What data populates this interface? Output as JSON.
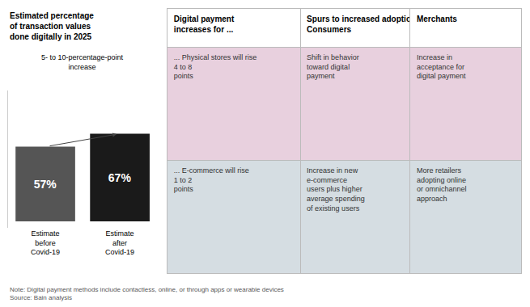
{
  "chart_data": [
    {
      "type": "bar",
      "title": "Estimated percentage\nof transaction values\ndone digitally in 2025",
      "subtitle": "5- to 10-percentage-point\nincrease",
      "categories": [
        "Estimate\nbefore\nCovid-19",
        "Estimate\nafter\nCovid-19"
      ],
      "values": [
        57,
        67
      ],
      "value_labels": [
        "57%",
        "67%"
      ],
      "colors": [
        "#555555",
        "#1a1a1a"
      ],
      "data_labels": true,
      "tick_labels": "x",
      "grid": false,
      "ylim": [
        -5,
        100
      ],
      "annotations": [
        "Note: Digital payment methods include contactless, online, or through apps or wearable devices\nSource: Bain analysis"
      ]
    },
    {
      "type": "table",
      "header": [
        "Digital payment\nincreases for ...",
        "Spurs to increased adoption for\nConsumers",
        "Merchants"
      ],
      "rows": [
        [
          "... Physical stores will rise\n4 to 8\npoints",
          "Shift in behavior\ntoward digital\npayment",
          "Increase in\nacceptance for\ndigital payment"
        ],
        [
          "... E-commerce will rise\n1 to 2\npoints",
          "Increase in new\ne-commerce\nusers plus higher\naverage spending\nof existing users",
          "More retailers\nadopting online\nor omnichannel\napproach"
        ]
      ],
      "colors": [
        "#e8d0de",
        "#d5dde2"
      ]
    }
  ]
}
